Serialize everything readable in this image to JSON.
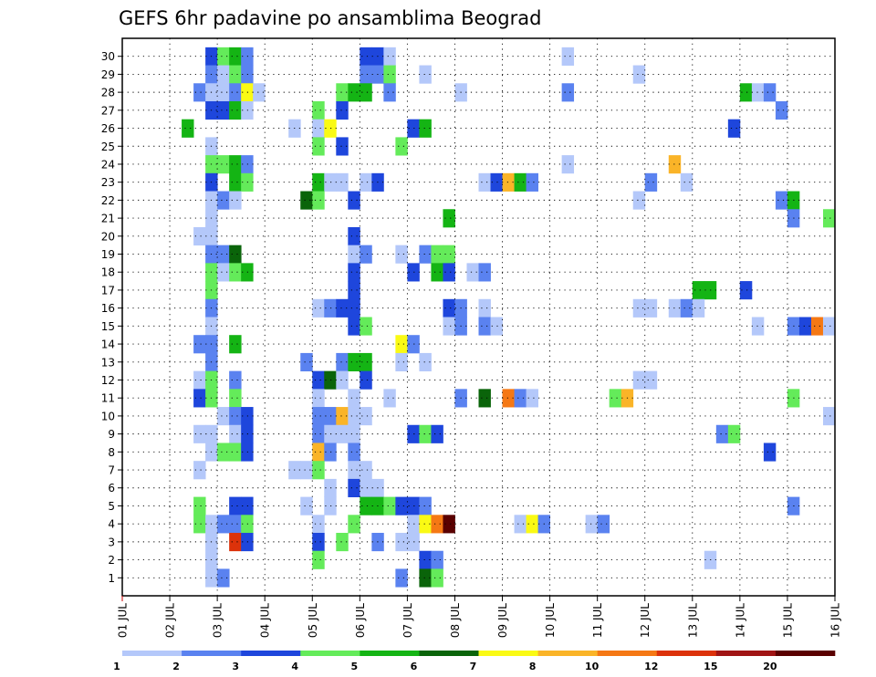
{
  "chart_data": {
    "type": "heatmap",
    "title": "GEFS 6hr padavine po ansamblima Beograd",
    "y_tick_labels": [
      "1",
      "2",
      "3",
      "4",
      "5",
      "6",
      "7",
      "8",
      "9",
      "10",
      "11",
      "12",
      "13",
      "14",
      "15",
      "16",
      "17",
      "18",
      "19",
      "20",
      "21",
      "22",
      "23",
      "24",
      "25",
      "26",
      "27",
      "28",
      "29",
      "30"
    ],
    "x_tick_labels": [
      "01 JUL",
      "02 JUL",
      "03 JUL",
      "04 JUL",
      "05 JUL",
      "06 JUL",
      "07 JUL",
      "08 JUL",
      "09 JUL",
      "10 JUL",
      "11 JUL",
      "12 JUL",
      "13 JUL",
      "14 JUL",
      "15 JUL",
      "16 JUL"
    ],
    "y_range": [
      0,
      30
    ],
    "x_range_hours": [
      0,
      360
    ],
    "time_step_hours": 6,
    "grid": "dotted",
    "colorbar": {
      "labels": [
        "1",
        "2",
        "3",
        "4",
        "5",
        "6",
        "7",
        "8",
        "10",
        "12",
        "15",
        "20"
      ],
      "colors": [
        "#b4c8fa",
        "#5a82f0",
        "#1e46dc",
        "#64eb5a",
        "#14b414",
        "#0a640a",
        "#fafa14",
        "#fab428",
        "#f57814",
        "#dc320a",
        "#a01414",
        "#5a0000"
      ]
    },
    "cells_note": "each cell: [time_step_index, ensemble_member, color_index]",
    "cells": [
      [
        7,
        30,
        2
      ],
      [
        8,
        30,
        3
      ],
      [
        9,
        30,
        4
      ],
      [
        10,
        30,
        1
      ],
      [
        20,
        30,
        2
      ],
      [
        21,
        30,
        2
      ],
      [
        22,
        30,
        0
      ],
      [
        37,
        30,
        0
      ],
      [
        7,
        29,
        1
      ],
      [
        8,
        29,
        0
      ],
      [
        9,
        29,
        3
      ],
      [
        10,
        29,
        1
      ],
      [
        20,
        29,
        1
      ],
      [
        21,
        29,
        1
      ],
      [
        22,
        29,
        3
      ],
      [
        25,
        29,
        0
      ],
      [
        43,
        29,
        0
      ],
      [
        6,
        28,
        1
      ],
      [
        7,
        28,
        0
      ],
      [
        8,
        28,
        0
      ],
      [
        9,
        28,
        1
      ],
      [
        10,
        28,
        6
      ],
      [
        11,
        28,
        0
      ],
      [
        18,
        28,
        3
      ],
      [
        19,
        28,
        4
      ],
      [
        20,
        28,
        4
      ],
      [
        22,
        28,
        1
      ],
      [
        28,
        28,
        0
      ],
      [
        37,
        28,
        1
      ],
      [
        52,
        28,
        4
      ],
      [
        53,
        28,
        0
      ],
      [
        54,
        28,
        1
      ],
      [
        7,
        27,
        2
      ],
      [
        8,
        27,
        2
      ],
      [
        9,
        27,
        4
      ],
      [
        10,
        27,
        0
      ],
      [
        16,
        27,
        3
      ],
      [
        18,
        27,
        2
      ],
      [
        55,
        27,
        1
      ],
      [
        5,
        26,
        4
      ],
      [
        14,
        26,
        0
      ],
      [
        16,
        26,
        0
      ],
      [
        17,
        26,
        6
      ],
      [
        24,
        26,
        2
      ],
      [
        25,
        26,
        4
      ],
      [
        51,
        26,
        2
      ],
      [
        7,
        25,
        0
      ],
      [
        16,
        25,
        3
      ],
      [
        18,
        25,
        2
      ],
      [
        23,
        25,
        3
      ],
      [
        7,
        24,
        3
      ],
      [
        8,
        24,
        3
      ],
      [
        9,
        24,
        4
      ],
      [
        10,
        24,
        1
      ],
      [
        37,
        24,
        0
      ],
      [
        46,
        24,
        7
      ],
      [
        7,
        23,
        2
      ],
      [
        9,
        23,
        4
      ],
      [
        10,
        23,
        3
      ],
      [
        16,
        23,
        4
      ],
      [
        17,
        23,
        0
      ],
      [
        18,
        23,
        0
      ],
      [
        20,
        23,
        0
      ],
      [
        21,
        23,
        2
      ],
      [
        30,
        23,
        0
      ],
      [
        31,
        23,
        2
      ],
      [
        32,
        23,
        7
      ],
      [
        33,
        23,
        4
      ],
      [
        34,
        23,
        1
      ],
      [
        44,
        23,
        1
      ],
      [
        47,
        23,
        0
      ],
      [
        7,
        22,
        0
      ],
      [
        8,
        22,
        1
      ],
      [
        9,
        22,
        0
      ],
      [
        15,
        22,
        5
      ],
      [
        16,
        22,
        3
      ],
      [
        19,
        22,
        2
      ],
      [
        43,
        22,
        0
      ],
      [
        55,
        22,
        1
      ],
      [
        56,
        22,
        4
      ],
      [
        7,
        21,
        0
      ],
      [
        27,
        21,
        4
      ],
      [
        56,
        21,
        1
      ],
      [
        59,
        21,
        3
      ],
      [
        6,
        20,
        0
      ],
      [
        7,
        20,
        0
      ],
      [
        19,
        20,
        2
      ],
      [
        7,
        19,
        1
      ],
      [
        8,
        19,
        1
      ],
      [
        9,
        19,
        5
      ],
      [
        19,
        19,
        0
      ],
      [
        20,
        19,
        1
      ],
      [
        23,
        19,
        0
      ],
      [
        25,
        19,
        1
      ],
      [
        26,
        19,
        3
      ],
      [
        27,
        19,
        3
      ],
      [
        7,
        18,
        3
      ],
      [
        8,
        18,
        0
      ],
      [
        9,
        18,
        3
      ],
      [
        10,
        18,
        4
      ],
      [
        19,
        18,
        2
      ],
      [
        24,
        18,
        2
      ],
      [
        26,
        18,
        4
      ],
      [
        27,
        18,
        2
      ],
      [
        29,
        18,
        0
      ],
      [
        30,
        18,
        1
      ],
      [
        7,
        17,
        3
      ],
      [
        19,
        17,
        2
      ],
      [
        48,
        17,
        4
      ],
      [
        49,
        17,
        4
      ],
      [
        52,
        17,
        2
      ],
      [
        7,
        16,
        1
      ],
      [
        16,
        16,
        0
      ],
      [
        17,
        16,
        1
      ],
      [
        18,
        16,
        2
      ],
      [
        19,
        16,
        2
      ],
      [
        27,
        16,
        2
      ],
      [
        28,
        16,
        1
      ],
      [
        30,
        16,
        0
      ],
      [
        43,
        16,
        0
      ],
      [
        44,
        16,
        0
      ],
      [
        46,
        16,
        0
      ],
      [
        47,
        16,
        1
      ],
      [
        48,
        16,
        0
      ],
      [
        7,
        15,
        0
      ],
      [
        19,
        15,
        2
      ],
      [
        20,
        15,
        3
      ],
      [
        27,
        15,
        0
      ],
      [
        28,
        15,
        1
      ],
      [
        30,
        15,
        1
      ],
      [
        31,
        15,
        0
      ],
      [
        53,
        15,
        0
      ],
      [
        56,
        15,
        1
      ],
      [
        57,
        15,
        2
      ],
      [
        58,
        15,
        8
      ],
      [
        59,
        15,
        0
      ],
      [
        6,
        14,
        1
      ],
      [
        7,
        14,
        1
      ],
      [
        9,
        14,
        4
      ],
      [
        23,
        14,
        6
      ],
      [
        24,
        14,
        1
      ],
      [
        7,
        13,
        1
      ],
      [
        15,
        13,
        1
      ],
      [
        18,
        13,
        1
      ],
      [
        19,
        13,
        4
      ],
      [
        20,
        13,
        4
      ],
      [
        23,
        13,
        0
      ],
      [
        25,
        13,
        0
      ],
      [
        6,
        12,
        0
      ],
      [
        7,
        12,
        3
      ],
      [
        9,
        12,
        1
      ],
      [
        16,
        12,
        2
      ],
      [
        17,
        12,
        5
      ],
      [
        18,
        12,
        0
      ],
      [
        20,
        12,
        2
      ],
      [
        43,
        12,
        0
      ],
      [
        44,
        12,
        0
      ],
      [
        6,
        11,
        2
      ],
      [
        7,
        11,
        3
      ],
      [
        9,
        11,
        3
      ],
      [
        16,
        11,
        0
      ],
      [
        19,
        11,
        0
      ],
      [
        22,
        11,
        0
      ],
      [
        28,
        11,
        1
      ],
      [
        30,
        11,
        5
      ],
      [
        32,
        11,
        8
      ],
      [
        33,
        11,
        1
      ],
      [
        34,
        11,
        0
      ],
      [
        41,
        11,
        3
      ],
      [
        42,
        11,
        7
      ],
      [
        56,
        11,
        3
      ],
      [
        8,
        10,
        0
      ],
      [
        9,
        10,
        1
      ],
      [
        10,
        10,
        2
      ],
      [
        16,
        10,
        1
      ],
      [
        17,
        10,
        1
      ],
      [
        18,
        10,
        7
      ],
      [
        19,
        10,
        0
      ],
      [
        20,
        10,
        0
      ],
      [
        59,
        10,
        0
      ],
      [
        6,
        9,
        0
      ],
      [
        7,
        9,
        0
      ],
      [
        9,
        9,
        0
      ],
      [
        10,
        9,
        2
      ],
      [
        16,
        9,
        1
      ],
      [
        17,
        9,
        0
      ],
      [
        18,
        9,
        0
      ],
      [
        19,
        9,
        0
      ],
      [
        24,
        9,
        2
      ],
      [
        25,
        9,
        3
      ],
      [
        26,
        9,
        2
      ],
      [
        50,
        9,
        1
      ],
      [
        51,
        9,
        3
      ],
      [
        7,
        8,
        0
      ],
      [
        8,
        8,
        3
      ],
      [
        9,
        8,
        3
      ],
      [
        10,
        8,
        2
      ],
      [
        16,
        8,
        7
      ],
      [
        17,
        8,
        1
      ],
      [
        19,
        8,
        1
      ],
      [
        54,
        8,
        2
      ],
      [
        6,
        7,
        0
      ],
      [
        14,
        7,
        0
      ],
      [
        15,
        7,
        0
      ],
      [
        16,
        7,
        3
      ],
      [
        19,
        7,
        0
      ],
      [
        20,
        7,
        0
      ],
      [
        17,
        6,
        0
      ],
      [
        19,
        6,
        2
      ],
      [
        20,
        6,
        0
      ],
      [
        21,
        6,
        0
      ],
      [
        6,
        5,
        3
      ],
      [
        9,
        5,
        2
      ],
      [
        10,
        5,
        2
      ],
      [
        15,
        5,
        0
      ],
      [
        17,
        5,
        0
      ],
      [
        20,
        5,
        4
      ],
      [
        21,
        5,
        4
      ],
      [
        22,
        5,
        3
      ],
      [
        23,
        5,
        2
      ],
      [
        24,
        5,
        2
      ],
      [
        25,
        5,
        1
      ],
      [
        56,
        5,
        1
      ],
      [
        6,
        4,
        3
      ],
      [
        7,
        4,
        0
      ],
      [
        8,
        4,
        1
      ],
      [
        9,
        4,
        1
      ],
      [
        10,
        4,
        3
      ],
      [
        16,
        4,
        0
      ],
      [
        19,
        4,
        3
      ],
      [
        24,
        4,
        0
      ],
      [
        25,
        4,
        6
      ],
      [
        26,
        4,
        8
      ],
      [
        27,
        4,
        11
      ],
      [
        33,
        4,
        0
      ],
      [
        34,
        4,
        6
      ],
      [
        35,
        4,
        1
      ],
      [
        39,
        4,
        0
      ],
      [
        40,
        4,
        1
      ],
      [
        7,
        3,
        0
      ],
      [
        9,
        3,
        9
      ],
      [
        10,
        3,
        2
      ],
      [
        16,
        3,
        2
      ],
      [
        18,
        3,
        3
      ],
      [
        21,
        3,
        1
      ],
      [
        23,
        3,
        0
      ],
      [
        24,
        3,
        0
      ],
      [
        7,
        2,
        0
      ],
      [
        16,
        2,
        3
      ],
      [
        25,
        2,
        2
      ],
      [
        26,
        2,
        1
      ],
      [
        49,
        2,
        0
      ],
      [
        7,
        1,
        0
      ],
      [
        8,
        1,
        1
      ],
      [
        23,
        1,
        1
      ],
      [
        25,
        1,
        5
      ],
      [
        26,
        1,
        3
      ]
    ]
  }
}
